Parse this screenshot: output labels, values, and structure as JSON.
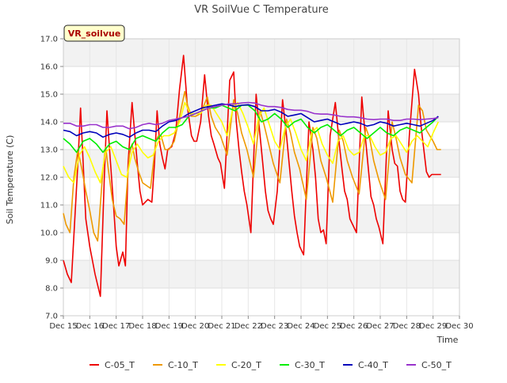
{
  "chart_data": {
    "type": "line",
    "title": "VR SoilVue C Temperature",
    "xlabel": "Time",
    "ylabel": "Soil Temperature (C)",
    "site_label": "VR_soilvue",
    "xlim": [
      15,
      30
    ],
    "ylim": [
      7.0,
      17.0
    ],
    "x_ticks": [
      15,
      16,
      17,
      18,
      19,
      20,
      21,
      22,
      23,
      24,
      25,
      26,
      27,
      28,
      29,
      30
    ],
    "x_tick_labels": [
      "Dec 15",
      "Dec 16",
      "Dec 17",
      "Dec 18",
      "Dec 19",
      "Dec 20",
      "Dec 21",
      "Dec 22",
      "Dec 23",
      "Dec 24",
      "Dec 25",
      "Dec 26",
      "Dec 27",
      "Dec 28",
      "Dec 29",
      "Dec 30"
    ],
    "y_ticks": [
      7,
      8,
      9,
      10,
      11,
      12,
      13,
      14,
      15,
      16,
      17
    ],
    "y_tick_labels": [
      "7.0",
      "8.0",
      "9.0",
      "10.0",
      "11.0",
      "12.0",
      "13.0",
      "14.0",
      "15.0",
      "16.0",
      "17.0"
    ],
    "grid": true,
    "legend_position": "bottom",
    "series": [
      {
        "name": "C-05_T",
        "color": "#ee0000",
        "x": [
          15.0,
          15.15,
          15.3,
          15.55,
          15.65,
          15.75,
          15.85,
          16.0,
          16.2,
          16.4,
          16.55,
          16.65,
          16.75,
          16.9,
          17.0,
          17.1,
          17.25,
          17.35,
          17.45,
          17.6,
          17.8,
          17.9,
          18.0,
          18.2,
          18.35,
          18.45,
          18.55,
          18.65,
          18.75,
          18.85,
          18.95,
          19.1,
          19.25,
          19.4,
          19.55,
          19.7,
          19.85,
          19.95,
          20.05,
          20.2,
          20.35,
          20.5,
          20.6,
          20.7,
          20.85,
          20.95,
          21.1,
          21.3,
          21.45,
          21.55,
          21.65,
          21.75,
          21.85,
          21.95,
          22.1,
          22.3,
          22.45,
          22.55,
          22.65,
          22.75,
          22.85,
          22.95,
          23.1,
          23.3,
          23.45,
          23.55,
          23.65,
          23.75,
          23.85,
          23.95,
          24.1,
          24.3,
          24.45,
          24.55,
          24.65,
          24.75,
          24.85,
          24.95,
          25.1,
          25.3,
          25.45,
          25.55,
          25.65,
          25.75,
          25.85,
          25.95,
          26.1,
          26.3,
          26.45,
          26.55,
          26.65,
          26.75,
          26.85,
          26.95,
          27.1,
          27.3,
          27.45,
          27.55,
          27.65,
          27.75,
          27.85,
          27.95,
          28.1,
          28.3,
          28.45,
          28.55,
          28.65,
          28.75,
          28.85,
          28.95,
          29.1,
          29.3
        ],
        "y": [
          9.0,
          8.5,
          8.2,
          12.5,
          14.5,
          12.5,
          10.5,
          9.5,
          8.5,
          7.7,
          12.0,
          14.4,
          13.0,
          11.0,
          9.5,
          8.8,
          9.3,
          8.8,
          12.5,
          14.7,
          12.5,
          11.5,
          11.0,
          11.2,
          11.1,
          12.5,
          14.4,
          13.2,
          12.7,
          12.3,
          13.0,
          13.1,
          13.6,
          15.2,
          16.4,
          14.5,
          13.5,
          13.3,
          13.3,
          14.0,
          15.7,
          14.2,
          13.5,
          13.2,
          12.7,
          12.5,
          11.6,
          15.5,
          15.8,
          14.0,
          13.0,
          12.2,
          11.5,
          11.0,
          10.0,
          15.0,
          13.5,
          12.5,
          11.5,
          10.8,
          10.5,
          10.3,
          11.5,
          14.8,
          13.5,
          12.5,
          11.5,
          10.6,
          10.0,
          9.5,
          9.2,
          14.0,
          13.0,
          12.0,
          10.5,
          10.0,
          10.1,
          9.6,
          13.5,
          14.7,
          13.2,
          12.3,
          11.5,
          11.2,
          10.5,
          10.3,
          10.0,
          14.9,
          13.3,
          12.3,
          11.3,
          11.0,
          10.5,
          10.2,
          9.6,
          14.4,
          13.0,
          12.5,
          12.4,
          11.5,
          11.2,
          11.1,
          13.5,
          15.9,
          15.0,
          13.8,
          13.0,
          12.2,
          12.0,
          12.1,
          12.1,
          12.1
        ]
      },
      {
        "name": "C-10_T",
        "color": "#ee9900",
        "x": [
          15.0,
          15.1,
          15.25,
          15.4,
          15.55,
          15.7,
          15.85,
          16.0,
          16.15,
          16.3,
          16.5,
          16.6,
          16.7,
          16.85,
          17.0,
          17.15,
          17.3,
          17.5,
          17.6,
          17.7,
          17.85,
          18.0,
          18.15,
          18.3,
          18.5,
          18.6,
          18.7,
          18.85,
          19.0,
          19.2,
          19.4,
          19.6,
          19.7,
          19.85,
          20.0,
          20.2,
          20.45,
          20.6,
          20.75,
          20.95,
          21.2,
          21.45,
          21.6,
          21.75,
          21.95,
          22.2,
          22.45,
          22.6,
          22.75,
          22.95,
          23.2,
          23.45,
          23.6,
          23.75,
          23.95,
          24.2,
          24.45,
          24.6,
          24.75,
          24.95,
          25.2,
          25.45,
          25.6,
          25.75,
          25.95,
          26.2,
          26.45,
          26.6,
          26.75,
          26.95,
          27.2,
          27.45,
          27.6,
          27.75,
          27.95,
          28.2,
          28.45,
          28.6,
          28.75,
          29.0,
          29.15,
          29.3
        ],
        "y": [
          10.7,
          10.3,
          10.0,
          12.0,
          13.0,
          12.3,
          11.5,
          10.8,
          10.0,
          9.7,
          12.3,
          13.1,
          12.3,
          11.2,
          10.6,
          10.5,
          10.3,
          12.8,
          13.2,
          12.7,
          12.2,
          11.8,
          11.7,
          11.6,
          13.3,
          13.5,
          13.5,
          13.0,
          13.0,
          13.3,
          14.2,
          15.1,
          14.6,
          14.2,
          14.2,
          14.3,
          14.9,
          14.2,
          13.8,
          13.5,
          12.8,
          14.8,
          14.3,
          13.6,
          13.0,
          12.0,
          14.4,
          13.9,
          13.3,
          12.5,
          11.8,
          14.1,
          13.6,
          12.9,
          12.3,
          11.2,
          13.8,
          13.4,
          12.6,
          12.0,
          11.1,
          13.7,
          13.3,
          12.6,
          12.0,
          11.4,
          13.8,
          13.4,
          12.6,
          11.9,
          11.2,
          14.0,
          13.4,
          12.7,
          12.1,
          11.8,
          14.6,
          14.4,
          13.7,
          13.3,
          13.0,
          13.0
        ]
      },
      {
        "name": "C-20_T",
        "color": "#ffff00",
        "x": [
          15.0,
          15.2,
          15.4,
          15.6,
          15.8,
          16.0,
          16.2,
          16.4,
          16.6,
          16.8,
          17.0,
          17.2,
          17.4,
          17.6,
          17.8,
          18.0,
          18.2,
          18.4,
          18.6,
          18.8,
          19.0,
          19.2,
          19.4,
          19.6,
          19.8,
          20.0,
          20.2,
          20.4,
          20.6,
          20.8,
          21.0,
          21.2,
          21.4,
          21.6,
          21.8,
          22.0,
          22.2,
          22.4,
          22.6,
          22.8,
          23.0,
          23.2,
          23.4,
          23.6,
          23.8,
          24.0,
          24.2,
          24.4,
          24.6,
          24.8,
          25.0,
          25.2,
          25.4,
          25.6,
          25.8,
          26.0,
          26.2,
          26.4,
          26.6,
          26.8,
          27.0,
          27.2,
          27.4,
          27.6,
          27.8,
          28.0,
          28.2,
          28.4,
          28.6,
          28.8,
          29.0,
          29.2
        ],
        "y": [
          12.4,
          12.0,
          11.8,
          12.8,
          13.1,
          12.7,
          12.2,
          11.8,
          12.9,
          13.1,
          12.6,
          12.1,
          12.0,
          12.9,
          13.2,
          12.9,
          12.7,
          12.8,
          13.3,
          13.5,
          13.5,
          13.6,
          14.0,
          14.7,
          14.3,
          14.3,
          14.3,
          14.6,
          14.6,
          14.3,
          14.0,
          13.5,
          14.4,
          14.7,
          14.3,
          13.8,
          13.2,
          14.2,
          14.5,
          13.9,
          13.3,
          13.0,
          13.8,
          14.1,
          13.6,
          13.0,
          12.6,
          13.6,
          13.8,
          13.2,
          12.8,
          12.5,
          13.3,
          13.5,
          13.0,
          12.8,
          12.9,
          13.5,
          13.5,
          13.1,
          12.8,
          12.9,
          13.4,
          13.5,
          13.2,
          12.9,
          13.3,
          13.5,
          13.3,
          13.1,
          13.6,
          14.0
        ]
      },
      {
        "name": "C-30_T",
        "color": "#00ee00",
        "x": [
          15.0,
          15.25,
          15.5,
          15.75,
          16.0,
          16.25,
          16.5,
          16.75,
          17.0,
          17.25,
          17.5,
          17.75,
          18.0,
          18.25,
          18.5,
          18.75,
          19.0,
          19.25,
          19.5,
          19.75,
          20.0,
          20.25,
          20.5,
          20.75,
          21.0,
          21.25,
          21.5,
          21.75,
          22.0,
          22.25,
          22.5,
          22.75,
          23.0,
          23.25,
          23.5,
          23.75,
          24.0,
          24.25,
          24.5,
          24.75,
          25.0,
          25.25,
          25.5,
          25.75,
          26.0,
          26.25,
          26.5,
          26.75,
          27.0,
          27.25,
          27.5,
          27.75,
          28.0,
          28.25,
          28.5,
          28.75,
          29.0,
          29.2
        ],
        "y": [
          13.4,
          13.2,
          12.9,
          13.3,
          13.4,
          13.2,
          12.9,
          13.2,
          13.3,
          13.1,
          13.0,
          13.4,
          13.5,
          13.4,
          13.3,
          13.6,
          13.8,
          13.8,
          13.9,
          14.2,
          14.3,
          14.4,
          14.5,
          14.5,
          14.6,
          14.5,
          14.4,
          14.6,
          14.6,
          14.4,
          14.0,
          14.1,
          14.3,
          14.1,
          13.8,
          14.0,
          14.1,
          13.8,
          13.6,
          13.8,
          13.9,
          13.7,
          13.5,
          13.7,
          13.8,
          13.6,
          13.4,
          13.6,
          13.8,
          13.6,
          13.5,
          13.7,
          13.8,
          13.7,
          13.6,
          13.8,
          14.0,
          14.2
        ]
      },
      {
        "name": "C-40_T",
        "color": "#0000bb",
        "x": [
          15.0,
          15.25,
          15.5,
          15.75,
          16.0,
          16.25,
          16.5,
          16.75,
          17.0,
          17.25,
          17.5,
          17.75,
          18.0,
          18.25,
          18.5,
          18.75,
          19.0,
          19.25,
          19.5,
          19.75,
          20.0,
          20.25,
          20.5,
          20.75,
          21.0,
          21.25,
          21.5,
          21.75,
          22.0,
          22.25,
          22.5,
          22.75,
          23.0,
          23.25,
          23.5,
          23.75,
          24.0,
          24.25,
          24.5,
          24.75,
          25.0,
          25.25,
          25.5,
          25.75,
          26.0,
          26.25,
          26.5,
          26.75,
          27.0,
          27.25,
          27.5,
          27.75,
          28.0,
          28.25,
          28.5,
          28.75,
          29.0,
          29.2
        ],
        "y": [
          13.7,
          13.65,
          13.5,
          13.6,
          13.65,
          13.6,
          13.45,
          13.55,
          13.6,
          13.55,
          13.45,
          13.6,
          13.7,
          13.7,
          13.65,
          13.85,
          14.0,
          14.05,
          14.15,
          14.3,
          14.4,
          14.5,
          14.55,
          14.6,
          14.65,
          14.62,
          14.55,
          14.6,
          14.62,
          14.55,
          14.4,
          14.4,
          14.45,
          14.35,
          14.2,
          14.25,
          14.3,
          14.15,
          14.0,
          14.05,
          14.1,
          14.0,
          13.9,
          13.95,
          14.0,
          13.95,
          13.85,
          13.9,
          14.0,
          13.95,
          13.85,
          13.9,
          13.95,
          13.9,
          13.85,
          13.95,
          14.05,
          14.2
        ]
      },
      {
        "name": "C-50_T",
        "color": "#9933cc",
        "x": [
          15.0,
          15.25,
          15.5,
          15.75,
          16.0,
          16.25,
          16.5,
          16.75,
          17.0,
          17.25,
          17.5,
          17.75,
          18.0,
          18.25,
          18.5,
          18.75,
          19.0,
          19.25,
          19.5,
          19.75,
          20.0,
          20.25,
          20.5,
          20.75,
          21.0,
          21.25,
          21.5,
          21.75,
          22.0,
          22.25,
          22.5,
          22.75,
          23.0,
          23.25,
          23.5,
          23.75,
          24.0,
          24.25,
          24.5,
          24.75,
          25.0,
          25.25,
          25.5,
          25.75,
          26.0,
          26.25,
          26.5,
          26.75,
          27.0,
          27.25,
          27.5,
          27.75,
          28.0,
          28.25,
          28.5,
          28.75,
          29.0,
          29.2
        ],
        "y": [
          13.95,
          13.95,
          13.85,
          13.85,
          13.9,
          13.9,
          13.8,
          13.8,
          13.85,
          13.85,
          13.75,
          13.8,
          13.9,
          13.95,
          13.9,
          13.95,
          14.05,
          14.1,
          14.15,
          14.2,
          14.3,
          14.4,
          14.5,
          14.55,
          14.6,
          14.65,
          14.65,
          14.68,
          14.7,
          14.68,
          14.6,
          14.55,
          14.55,
          14.52,
          14.45,
          14.42,
          14.42,
          14.38,
          14.3,
          14.28,
          14.28,
          14.25,
          14.2,
          14.18,
          14.18,
          14.15,
          14.1,
          14.08,
          14.1,
          14.1,
          14.05,
          14.05,
          14.1,
          14.1,
          14.08,
          14.1,
          14.12,
          14.15
        ]
      }
    ]
  }
}
